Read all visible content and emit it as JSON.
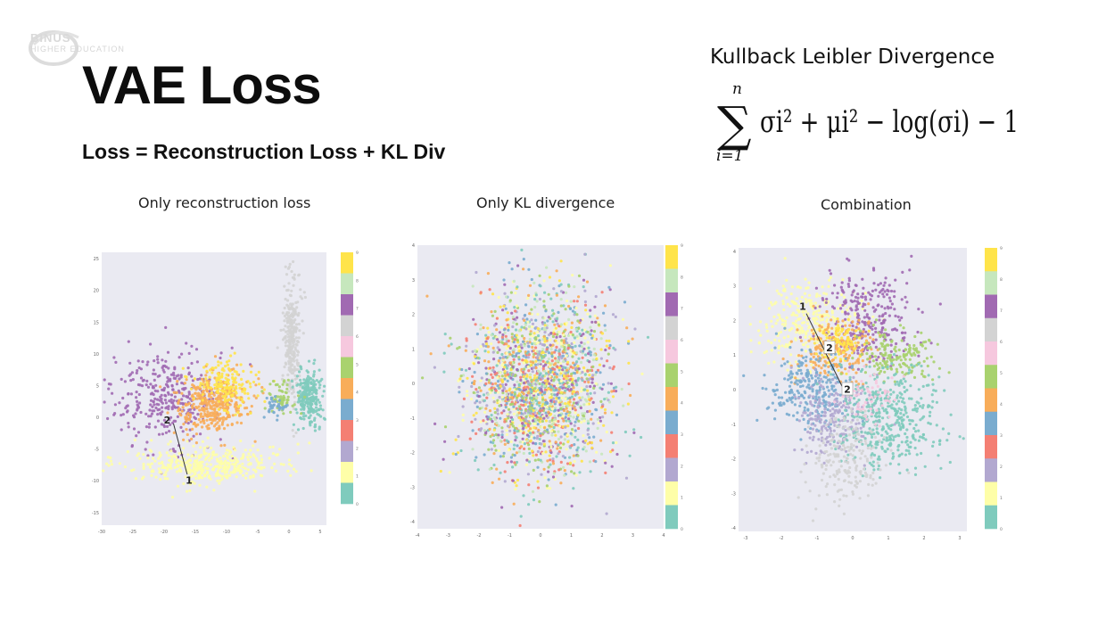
{
  "slide": {
    "logo": {
      "line1": "BINUS",
      "line2": "HIGHER EDUCATION"
    },
    "title": "VAE Loss",
    "subtitle": "Loss = Reconstruction Loss + KL Div",
    "kl": {
      "title": "Kullback Leibler Divergence",
      "formula": {
        "sum_upper": "n",
        "sum_lower": "i=1",
        "text": "σi² + μi² − log(σi) − 1"
      }
    }
  },
  "colors": {
    "cluster_palette": [
      "#7fcbbd",
      "#fefea8",
      "#b2a8d0",
      "#f47f73",
      "#7aaccf",
      "#f8ad5a",
      "#a9d26e",
      "#f6c8de",
      "#d3d3d3",
      "#a16ab2",
      "#c6e7bd",
      "#ffe44a"
    ],
    "plot_background": "#eaeaf2"
  },
  "chart_data": [
    {
      "type": "scatter",
      "title": "Only reconstruction loss",
      "xlim": [
        -30,
        6
      ],
      "ylim": [
        -17,
        26
      ],
      "xticks": [
        -30,
        -25,
        -20,
        -15,
        -10,
        -5,
        0,
        5
      ],
      "yticks": [
        -15,
        -10,
        -5,
        0,
        5,
        10,
        15,
        20,
        25
      ],
      "grid": false,
      "colorbar": true,
      "colorbar_ticks": [
        "0",
        "1",
        "2",
        "3",
        "4",
        "5",
        "6",
        "7",
        "8",
        "9"
      ],
      "clusters": [
        {
          "cx": -20,
          "cy": 3,
          "sx": 4.5,
          "sy": 4.0,
          "n": 330,
          "color": 9
        },
        {
          "cx": -12,
          "cy": 2,
          "sx": 3.0,
          "sy": 2.3,
          "n": 360,
          "color": 5
        },
        {
          "cx": -10,
          "cy": 5.5,
          "sx": 2.5,
          "sy": 2.0,
          "n": 160,
          "color": 11
        },
        {
          "cx": 0.5,
          "cy": 12,
          "sx": 0.7,
          "sy": 4.8,
          "n": 280,
          "color": 8
        },
        {
          "cx": 3.2,
          "cy": 3,
          "sx": 1.0,
          "sy": 2.2,
          "n": 260,
          "color": 0
        },
        {
          "cx": -13,
          "cy": -7.5,
          "sx": 6.5,
          "sy": 1.6,
          "n": 420,
          "color": 1
        },
        {
          "cx": -1,
          "cy": 3,
          "sx": 1.0,
          "sy": 1.5,
          "n": 60,
          "color": 6
        },
        {
          "cx": -2,
          "cy": 1.5,
          "sx": 1.0,
          "sy": 1.0,
          "n": 40,
          "color": 4
        }
      ],
      "annotations": [
        {
          "label": "2",
          "x": -19.5,
          "y": -0.5,
          "box": false
        },
        {
          "label": "1",
          "x": -16,
          "y": -10,
          "box": false
        }
      ],
      "annotation_line": {
        "from": [
          -18.5,
          -1
        ],
        "to": [
          -16.3,
          -9
        ]
      }
    },
    {
      "type": "scatter",
      "title": "Only KL divergence",
      "xlim": [
        -4,
        4
      ],
      "ylim": [
        -4.2,
        4
      ],
      "xticks": [
        -4,
        -3,
        -2,
        -1,
        0,
        1,
        2,
        3,
        4
      ],
      "yticks": [
        -4,
        -3,
        -2,
        -1,
        0,
        1,
        2,
        3,
        4
      ],
      "grid": false,
      "colorbar": true,
      "colorbar_ticks": [
        "0",
        "1",
        "2",
        "3",
        "4",
        "5",
        "6",
        "7",
        "8",
        "9"
      ],
      "clusters": [
        {
          "cx": 0,
          "cy": 0,
          "sx": 1.15,
          "sy": 1.3,
          "n": 2100,
          "color": -1
        }
      ],
      "annotations": []
    },
    {
      "type": "scatter",
      "title": "Combination",
      "xlim": [
        -3.2,
        3.2
      ],
      "ylim": [
        -4.1,
        4.1
      ],
      "xticks": [
        -3,
        -2,
        -1,
        0,
        1,
        2,
        3
      ],
      "yticks": [
        -4,
        -3,
        -2,
        -1,
        0,
        1,
        2,
        3,
        4
      ],
      "grid": false,
      "colorbar": true,
      "colorbar_ticks": [
        "0",
        "1",
        "2",
        "3",
        "4",
        "5",
        "6",
        "7",
        "8",
        "9"
      ],
      "clusters": [
        {
          "cx": -1.3,
          "cy": 1.9,
          "sx": 0.75,
          "sy": 0.65,
          "n": 320,
          "color": 1
        },
        {
          "cx": 0.4,
          "cy": 2.1,
          "sx": 0.6,
          "sy": 0.65,
          "n": 280,
          "color": 9
        },
        {
          "cx": -0.4,
          "cy": 1.2,
          "sx": 0.5,
          "sy": 0.45,
          "n": 220,
          "color": 5
        },
        {
          "cx": -0.3,
          "cy": 1.4,
          "sx": 0.3,
          "sy": 0.3,
          "n": 90,
          "color": 11
        },
        {
          "cx": 1.3,
          "cy": 1.0,
          "sx": 0.5,
          "sy": 0.35,
          "n": 160,
          "color": 6
        },
        {
          "cx": -1.2,
          "cy": 0.0,
          "sx": 0.55,
          "sy": 0.6,
          "n": 260,
          "color": 4
        },
        {
          "cx": -0.5,
          "cy": -0.8,
          "sx": 0.55,
          "sy": 0.55,
          "n": 210,
          "color": 2
        },
        {
          "cx": 1.0,
          "cy": -0.9,
          "sx": 0.75,
          "sy": 0.75,
          "n": 420,
          "color": 0
        },
        {
          "cx": -0.2,
          "cy": -2.0,
          "sx": 0.5,
          "sy": 0.75,
          "n": 200,
          "color": 8
        },
        {
          "cx": 0.5,
          "cy": -0.2,
          "sx": 0.4,
          "sy": 0.35,
          "n": 60,
          "color": 7
        }
      ],
      "annotations": [
        {
          "label": "1",
          "x": -1.4,
          "y": 2.4,
          "box": false
        },
        {
          "label": "2",
          "x": -0.65,
          "y": 1.2,
          "box": true
        },
        {
          "label": "2",
          "x": -0.15,
          "y": 0.0,
          "box": true
        }
      ],
      "annotation_line": {
        "from": [
          -1.3,
          2.2
        ],
        "to": [
          -0.3,
          0.1
        ]
      }
    }
  ]
}
